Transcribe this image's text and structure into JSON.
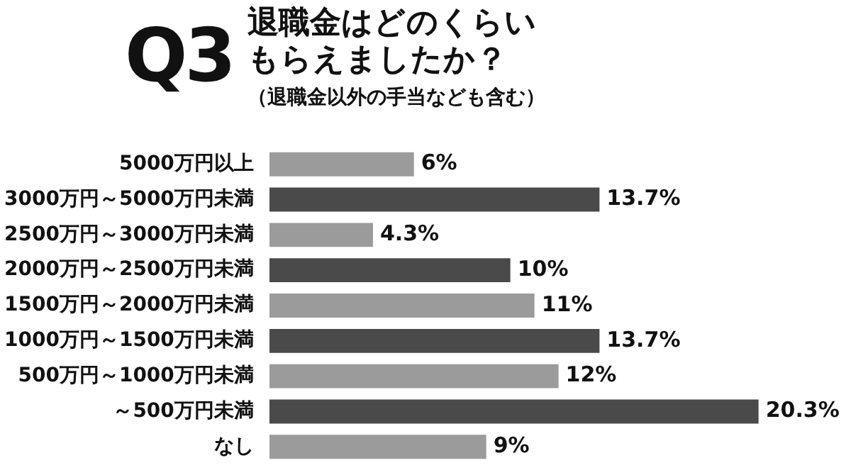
{
  "chart_data": {
    "type": "bar",
    "orientation": "horizontal",
    "title": "退職金はどのくらいもらえましたか？",
    "subtitle": "（退職金以外の手当なども含む）",
    "annotations": [
      "Q3"
    ],
    "categories": [
      "5000万円以上",
      "3000万円～5000万円未満",
      "2500万円～3000万円未満",
      "2000万円～2500万円未満",
      "1500万円～2000万円未満",
      "1000万円～1500万円未満",
      "500万円～1000万円未満",
      "～500万円未満",
      "なし"
    ],
    "values": [
      6,
      13.7,
      4.3,
      10,
      11,
      13.7,
      12,
      20.3,
      9
    ],
    "colors": [
      "#9b9b9b",
      "#4a4a4a",
      "#9b9b9b",
      "#4a4a4a",
      "#9b9b9b",
      "#4a4a4a",
      "#9b9b9b",
      "#4a4a4a",
      "#9b9b9b"
    ],
    "value_labels": [
      "6%",
      "13.7%",
      "4.3%",
      "10%",
      "11%",
      "13.7%",
      "12%",
      "20.3%",
      "9%"
    ]
  }
}
